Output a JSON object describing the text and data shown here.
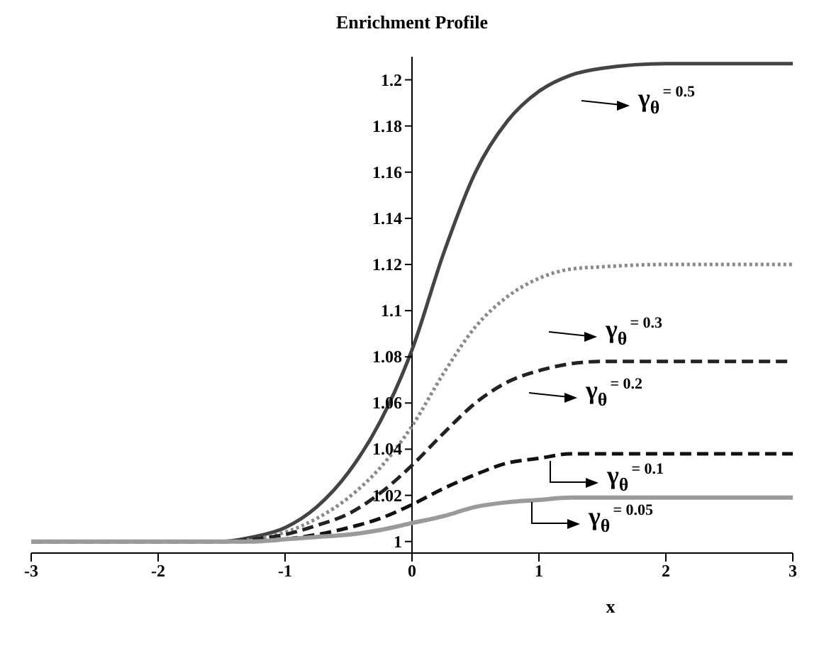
{
  "chart_data": {
    "type": "line",
    "title": "Enrichment Profile",
    "xlabel": "x",
    "x": [
      -3,
      -2,
      -1.5,
      -1.25,
      -1,
      -0.75,
      -0.5,
      -0.25,
      0,
      0.25,
      0.5,
      0.75,
      1,
      1.25,
      1.5,
      2,
      2.5,
      3
    ],
    "series": [
      {
        "color": "#444444",
        "line_style": "solid",
        "values": [
          1,
          1,
          1,
          1.002,
          1.006,
          1.015,
          1.03,
          1.052,
          1.083,
          1.125,
          1.16,
          1.182,
          1.195,
          1.202,
          1.205,
          1.207,
          1.207,
          1.207
        ]
      },
      {
        "color": "#8a8a8a",
        "line_style": "dotted",
        "values": [
          1,
          1,
          1,
          1.001,
          1.004,
          1.01,
          1.019,
          1.032,
          1.05,
          1.073,
          1.093,
          1.106,
          1.114,
          1.118,
          1.119,
          1.12,
          1.12,
          1.12
        ]
      },
      {
        "color": "#222222",
        "line_style": "dashed",
        "values": [
          1,
          1,
          1,
          1.001,
          1.003,
          1.007,
          1.012,
          1.021,
          1.033,
          1.047,
          1.06,
          1.069,
          1.074,
          1.077,
          1.078,
          1.078,
          1.078,
          1.078
        ]
      },
      {
        "color": "#111111",
        "line_style": "dashed",
        "values": [
          1,
          1,
          1,
          1,
          1.001,
          1.003,
          1.006,
          1.01,
          1.016,
          1.023,
          1.029,
          1.034,
          1.036,
          1.038,
          1.038,
          1.038,
          1.038,
          1.038
        ]
      },
      {
        "color": "#9a9a9a",
        "line_style": "solid",
        "values": [
          1,
          1,
          1,
          1,
          1.001,
          1.002,
          1.003,
          1.005,
          1.008,
          1.011,
          1.015,
          1.017,
          1.018,
          1.019,
          1.019,
          1.019,
          1.019,
          1.019
        ]
      }
    ],
    "annotations": [
      "γ$_{θ}$$^{= 0.5}$",
      "γ$_{θ}$$^{= 0.3}$",
      "γ$_{θ}$$^{= 0.2}$",
      "γ$_{θ}$$^{= 0.1}$",
      "γ$_{θ}$$^{= 0.05}$"
    ],
    "xlim": [
      -3,
      3
    ],
    "xticks": [
      -3,
      -2,
      -1,
      0,
      1,
      2,
      3
    ],
    "ylim": [
      0.995,
      1.21
    ],
    "yticks": [
      1,
      1.02,
      1.04,
      1.06,
      1.08,
      1.1,
      1.12,
      1.14,
      1.16,
      1.18,
      1.2
    ],
    "grid": false,
    "legend": false,
    "marker": "none"
  }
}
